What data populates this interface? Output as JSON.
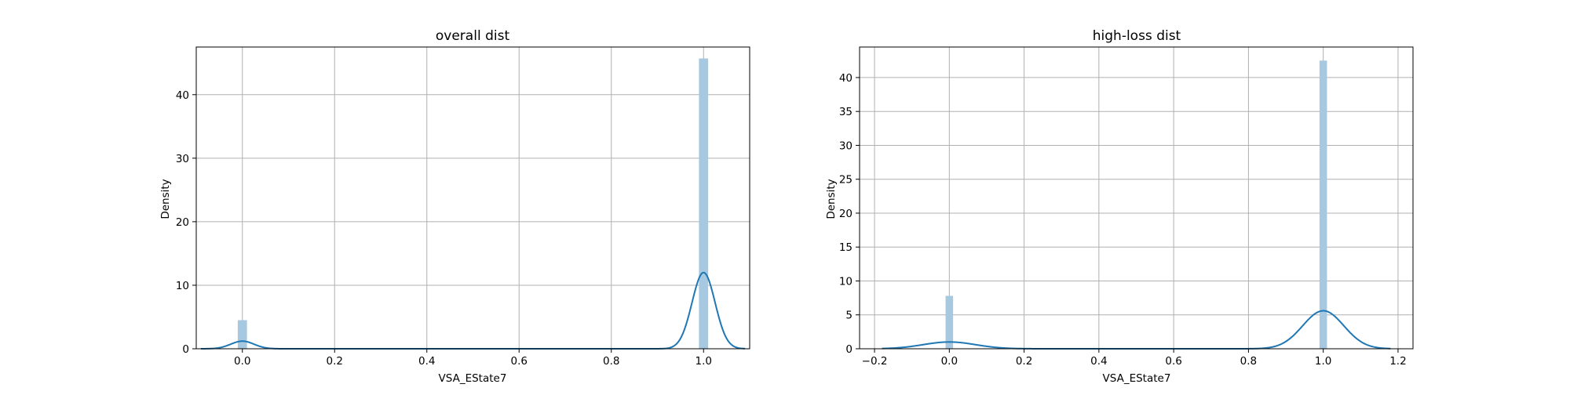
{
  "chart_data": [
    {
      "type": "histogram",
      "title": "overall dist",
      "xlabel": "VSA_EState7",
      "ylabel": "Density",
      "xlim": [
        -0.1,
        1.1
      ],
      "ylim": [
        0,
        47.5
      ],
      "xticks": [
        0.0,
        0.2,
        0.4,
        0.6,
        0.8,
        1.0
      ],
      "xtick_labels": [
        "0.0",
        "0.2",
        "0.4",
        "0.6",
        "0.8",
        "1.0"
      ],
      "yticks": [
        0,
        10,
        20,
        30,
        40
      ],
      "ytick_labels": [
        "0",
        "10",
        "20",
        "30",
        "40"
      ],
      "grid": true,
      "bin_width": 0.02,
      "bars": [
        {
          "x": 0.0,
          "density": 4.5
        },
        {
          "x": 1.0,
          "density": 45.7
        }
      ],
      "kde": {
        "x_range": [
          -0.09,
          1.09
        ],
        "components": [
          {
            "mean": 0.0,
            "peak_density": 1.2,
            "sd": 0.025
          },
          {
            "mean": 1.0,
            "peak_density": 12.0,
            "sd": 0.025
          }
        ]
      },
      "colors": {
        "bars": "#a6c8e0",
        "kde": "#1f77b4"
      }
    },
    {
      "type": "histogram",
      "title": "high-loss dist",
      "xlabel": "VSA_EState7",
      "ylabel": "Density",
      "xlim": [
        -0.24,
        1.24
      ],
      "ylim": [
        0,
        44.5
      ],
      "xticks": [
        -0.2,
        0.0,
        0.2,
        0.4,
        0.6,
        0.8,
        1.0,
        1.2
      ],
      "xtick_labels": [
        "−0.2",
        "0.0",
        "0.2",
        "0.4",
        "0.6",
        "0.8",
        "1.0",
        "1.2"
      ],
      "yticks": [
        0,
        5,
        10,
        15,
        20,
        25,
        30,
        35,
        40
      ],
      "ytick_labels": [
        "0",
        "5",
        "10",
        "15",
        "20",
        "25",
        "30",
        "35",
        "40"
      ],
      "grid": true,
      "bin_width": 0.02,
      "bars": [
        {
          "x": 0.0,
          "density": 7.8
        },
        {
          "x": 1.0,
          "density": 42.5
        }
      ],
      "kde": {
        "x_range": [
          -0.18,
          1.18
        ],
        "components": [
          {
            "mean": 0.0,
            "peak_density": 1.0,
            "sd": 0.07
          },
          {
            "mean": 1.0,
            "peak_density": 5.6,
            "sd": 0.055
          }
        ]
      },
      "colors": {
        "bars": "#a6c8e0",
        "kde": "#1f77b4"
      }
    }
  ]
}
